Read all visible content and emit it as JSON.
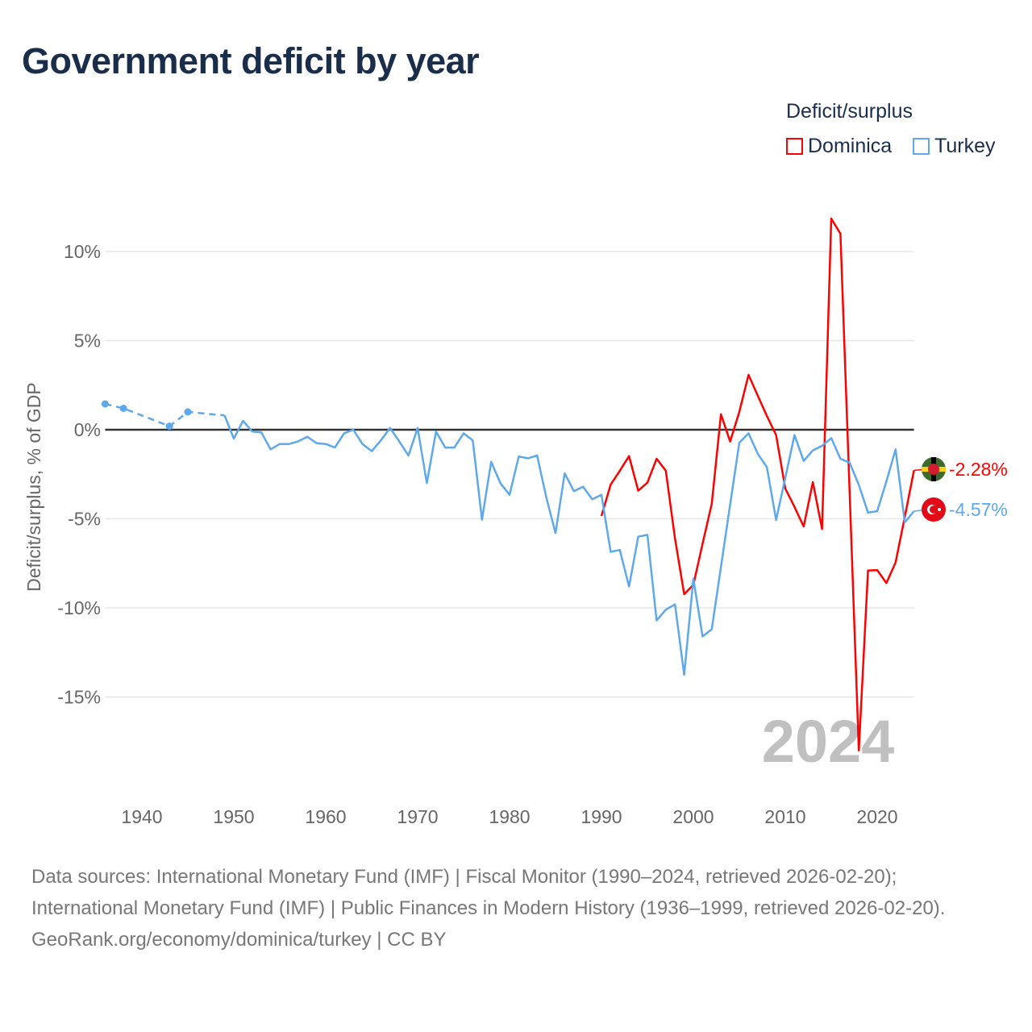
{
  "title": "Government deficit by year",
  "legend": {
    "title": "Deficit/surplus",
    "items": [
      {
        "name": "Dominica",
        "color": "#ff0000"
      },
      {
        "name": "Turkey",
        "color": "#5ea8ec"
      }
    ]
  },
  "year_watermark": "2024",
  "footer": {
    "sources": "Data sources: International Monetary Fund (IMF) | Fiscal Monitor (1990–2024, retrieved 2026-02-20); International Monetary Fund (IMF) | Public Finances in Modern History (1936–1999, retrieved 2026-02-20).",
    "credit": "GeoRank.org/economy/dominica/turkey | CC BY"
  },
  "chart_data": {
    "type": "line",
    "title": "Government deficit by year",
    "xlabel": "",
    "ylabel": "Deficit/surplus, % of GDP",
    "xlim": [
      1936,
      2024
    ],
    "ylim": [
      -20,
      12.5
    ],
    "xticks": [
      1940,
      1950,
      1960,
      1970,
      1980,
      1990,
      2000,
      2010,
      2020
    ],
    "yticks": [
      {
        "v": 10,
        "label": "10%"
      },
      {
        "v": 5,
        "label": "5%"
      },
      {
        "v": 0,
        "label": "0%"
      },
      {
        "v": -5,
        "label": "-5%"
      },
      {
        "v": -10,
        "label": "-10%"
      },
      {
        "v": -15,
        "label": "-15%"
      }
    ],
    "grid": true,
    "legend_position": "top-right",
    "series": [
      {
        "name": "Dominica",
        "color": "#ff0000",
        "end_label": "-2.28%",
        "points": [
          [
            1990,
            -4.84
          ],
          [
            1991,
            -3.08
          ],
          [
            1992,
            -2.3
          ],
          [
            1993,
            -1.48
          ],
          [
            1994,
            -3.42
          ],
          [
            1995,
            -2.97
          ],
          [
            1996,
            -1.63
          ],
          [
            1997,
            -2.3
          ],
          [
            1998,
            -6.1
          ],
          [
            1999,
            -9.23
          ],
          [
            2000,
            -8.7
          ],
          [
            2001,
            -6.4
          ],
          [
            2002,
            -4.16
          ],
          [
            2003,
            0.87
          ],
          [
            2004,
            -0.66
          ],
          [
            2005,
            1.01
          ],
          [
            2006,
            3.08
          ],
          [
            2007,
            1.92
          ],
          [
            2008,
            0.77
          ],
          [
            2009,
            -0.3
          ],
          [
            2010,
            -3.3
          ],
          [
            2011,
            -4.33
          ],
          [
            2012,
            -5.43
          ],
          [
            2013,
            -2.94
          ],
          [
            2014,
            -5.57
          ],
          [
            2015,
            11.85
          ],
          [
            2016,
            11.0
          ],
          [
            2017,
            -3.5
          ],
          [
            2018,
            -18.0
          ],
          [
            2019,
            -7.9
          ],
          [
            2020,
            -7.88
          ],
          [
            2021,
            -8.6
          ],
          [
            2022,
            -7.45
          ],
          [
            2023,
            -4.9
          ],
          [
            2024,
            -2.28
          ]
        ]
      },
      {
        "name": "Turkey",
        "color": "#5ea8ec",
        "end_label": "-4.57%",
        "dashed_points": [
          [
            1936,
            1.45
          ],
          [
            1938,
            1.2
          ],
          [
            1943,
            0.2
          ],
          [
            1945,
            1.0
          ],
          [
            1949,
            0.8
          ]
        ],
        "points": [
          [
            1949,
            0.8
          ],
          [
            1950,
            -0.5
          ],
          [
            1951,
            0.5
          ],
          [
            1952,
            -0.1
          ],
          [
            1953,
            -0.15
          ],
          [
            1954,
            -1.1
          ],
          [
            1955,
            -0.8
          ],
          [
            1956,
            -0.8
          ],
          [
            1957,
            -0.65
          ],
          [
            1958,
            -0.4
          ],
          [
            1959,
            -0.75
          ],
          [
            1960,
            -0.8
          ],
          [
            1961,
            -1.0
          ],
          [
            1962,
            -0.2
          ],
          [
            1963,
            0.0
          ],
          [
            1964,
            -0.8
          ],
          [
            1965,
            -1.2
          ],
          [
            1966,
            -0.6
          ],
          [
            1967,
            0.1
          ],
          [
            1968,
            -0.65
          ],
          [
            1969,
            -1.45
          ],
          [
            1970,
            0.1
          ],
          [
            1971,
            -3.0
          ],
          [
            1972,
            -0.1
          ],
          [
            1973,
            -1.0
          ],
          [
            1974,
            -1.0
          ],
          [
            1975,
            -0.2
          ],
          [
            1976,
            -0.6
          ],
          [
            1977,
            -5.05
          ],
          [
            1978,
            -1.8
          ],
          [
            1979,
            -3.0
          ],
          [
            1980,
            -3.65
          ],
          [
            1981,
            -1.5
          ],
          [
            1982,
            -1.6
          ],
          [
            1983,
            -1.45
          ],
          [
            1984,
            -3.8
          ],
          [
            1985,
            -5.8
          ],
          [
            1986,
            -2.45
          ],
          [
            1987,
            -3.45
          ],
          [
            1988,
            -3.2
          ],
          [
            1989,
            -3.9
          ],
          [
            1990,
            -3.65
          ],
          [
            1991,
            -6.85
          ],
          [
            1992,
            -6.75
          ],
          [
            1993,
            -8.8
          ],
          [
            1994,
            -6.0
          ],
          [
            1995,
            -5.9
          ],
          [
            1996,
            -10.7
          ],
          [
            1997,
            -10.1
          ],
          [
            1998,
            -9.8
          ],
          [
            1999,
            -13.75
          ],
          [
            2000,
            -8.36
          ],
          [
            2001,
            -11.6
          ],
          [
            2002,
            -11.2
          ],
          [
            2003,
            -7.7
          ],
          [
            2004,
            -4.2
          ],
          [
            2005,
            -0.73
          ],
          [
            2006,
            -0.2
          ],
          [
            2007,
            -1.35
          ],
          [
            2008,
            -2.1
          ],
          [
            2009,
            -5.07
          ],
          [
            2010,
            -2.7
          ],
          [
            2011,
            -0.3
          ],
          [
            2012,
            -1.75
          ],
          [
            2013,
            -1.16
          ],
          [
            2014,
            -0.9
          ],
          [
            2015,
            -0.47
          ],
          [
            2016,
            -1.63
          ],
          [
            2017,
            -1.85
          ],
          [
            2018,
            -3.1
          ],
          [
            2019,
            -4.65
          ],
          [
            2020,
            -4.57
          ],
          [
            2021,
            -2.9
          ],
          [
            2022,
            -1.1
          ],
          [
            2023,
            -5.2
          ],
          [
            2024,
            -4.57
          ]
        ]
      }
    ]
  }
}
